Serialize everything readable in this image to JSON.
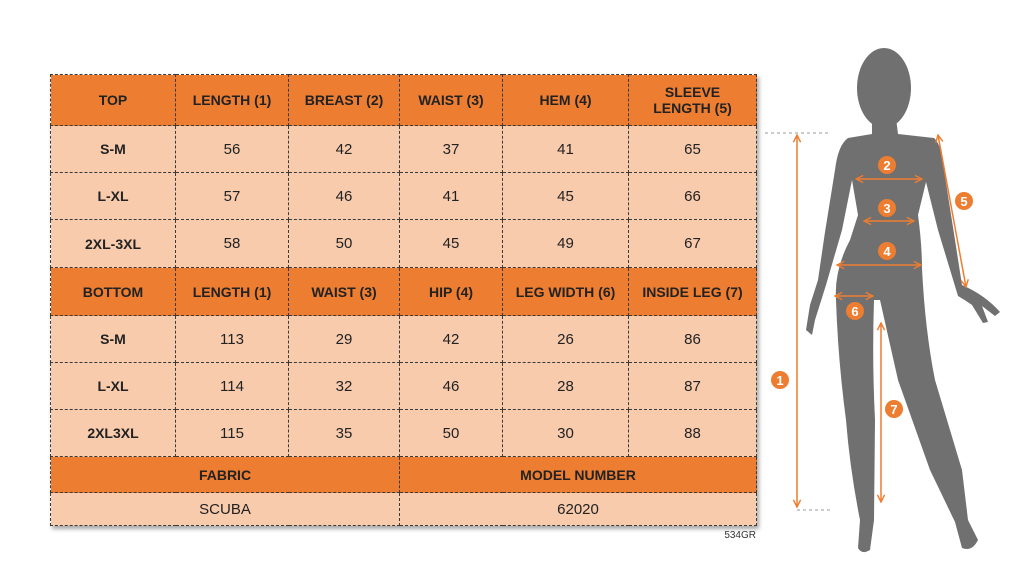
{
  "top": {
    "headers": [
      "TOP",
      "LENGTH (1)",
      "BREAST (2)",
      "WAIST (3)",
      "HEM (4)",
      "SLEEVE LENGTH (5)"
    ],
    "rows": [
      [
        "S-M",
        "56",
        "42",
        "37",
        "41",
        "65"
      ],
      [
        "L-XL",
        "57",
        "46",
        "41",
        "45",
        "66"
      ],
      [
        "2XL-3XL",
        "58",
        "50",
        "45",
        "49",
        "67"
      ]
    ]
  },
  "bottom": {
    "headers": [
      "BOTTOM",
      "LENGTH (1)",
      "WAIST (3)",
      "HIP (4)",
      "LEG WIDTH (6)",
      "INSIDE LEG (7)"
    ],
    "rows": [
      [
        "S-M",
        "113",
        "29",
        "42",
        "26",
        "86"
      ],
      [
        "L-XL",
        "114",
        "32",
        "46",
        "28",
        "87"
      ],
      [
        "2XL3XL",
        "115",
        "35",
        "50",
        "30",
        "88"
      ]
    ]
  },
  "fabric": {
    "label": "FABRIC",
    "value": "SCUBA"
  },
  "model": {
    "label": "MODEL NUMBER",
    "value": "62020"
  },
  "code": "534GR",
  "figure": {
    "markers": [
      "1",
      "2",
      "3",
      "4",
      "5",
      "6",
      "7"
    ]
  },
  "colors": {
    "header": "#ED7D31",
    "cell": "#F8CBAD",
    "silhouette": "#707070",
    "accent": "#ED7D31"
  }
}
